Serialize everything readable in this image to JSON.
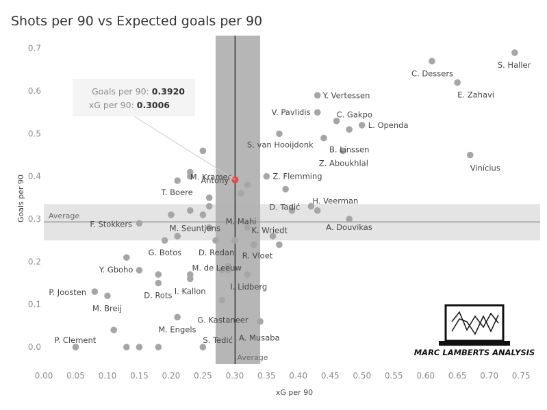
{
  "chart_data": {
    "type": "scatter",
    "title": "Shots per 90 vs Expected goals per 90",
    "xlabel": "xG per 90",
    "ylabel": "Goals per 90",
    "xlim": [
      0,
      0.78
    ],
    "ylim": [
      -0.04,
      0.73
    ],
    "xticks": [
      "0.00",
      "0.05",
      "0.10",
      "0.15",
      "0.20",
      "0.25",
      "0.30",
      "0.35",
      "0.40",
      "0.45",
      "0.50",
      "0.55",
      "0.60",
      "0.65",
      "0.70",
      "0.75"
    ],
    "yticks": [
      "0.0",
      "0.1",
      "0.2",
      "0.3",
      "0.4",
      "0.5",
      "0.6",
      "0.7"
    ],
    "averages": {
      "x_value": 0.3006,
      "y_value": 0.2933,
      "x_label": "Average",
      "y_label": "Average",
      "x_band": [
        0.27,
        0.34
      ],
      "y_band": [
        0.25,
        0.335
      ]
    },
    "points": [
      {
        "x": 0.74,
        "y": 0.69,
        "label": "S. Haller"
      },
      {
        "x": 0.61,
        "y": 0.67,
        "label": "C. Dessers"
      },
      {
        "x": 0.65,
        "y": 0.62,
        "label": "E. Zahavi"
      },
      {
        "x": 0.67,
        "y": 0.45,
        "label": "Vinícius"
      },
      {
        "x": 0.43,
        "y": 0.59,
        "label": "Y. Vertessen"
      },
      {
        "x": 0.43,
        "y": 0.55,
        "label": "V. Pavlidis"
      },
      {
        "x": 0.46,
        "y": 0.53,
        "label": "C. Gakpo"
      },
      {
        "x": 0.5,
        "y": 0.52,
        "label": "L. Openda"
      },
      {
        "x": 0.48,
        "y": 0.51,
        "label": ""
      },
      {
        "x": 0.37,
        "y": 0.5,
        "label": "S. van Hooijdonk"
      },
      {
        "x": 0.44,
        "y": 0.49,
        "label": "B. Linssen"
      },
      {
        "x": 0.47,
        "y": 0.46,
        "label": "Z. Aboukhlal"
      },
      {
        "x": 0.25,
        "y": 0.46,
        "label": ""
      },
      {
        "x": 0.23,
        "y": 0.41,
        "label": "M. Kramer"
      },
      {
        "x": 0.23,
        "y": 0.4,
        "label": ""
      },
      {
        "x": 0.35,
        "y": 0.4,
        "label": "Z. Flemming"
      },
      {
        "x": 0.21,
        "y": 0.39,
        "label": "T. Boere"
      },
      {
        "x": 0.32,
        "y": 0.38,
        "label": ""
      },
      {
        "x": 0.31,
        "y": 0.36,
        "label": ""
      },
      {
        "x": 0.38,
        "y": 0.37,
        "label": "D. Tadić"
      },
      {
        "x": 0.26,
        "y": 0.35,
        "label": ""
      },
      {
        "x": 0.26,
        "y": 0.33,
        "label": "M. Mahi"
      },
      {
        "x": 0.42,
        "y": 0.33,
        "label": "H. Veerman"
      },
      {
        "x": 0.43,
        "y": 0.32,
        "label": ""
      },
      {
        "x": 0.39,
        "y": 0.32,
        "label": ""
      },
      {
        "x": 0.23,
        "y": 0.32,
        "label": ""
      },
      {
        "x": 0.2,
        "y": 0.31,
        "label": ""
      },
      {
        "x": 0.25,
        "y": 0.31,
        "label": ""
      },
      {
        "x": 0.48,
        "y": 0.3,
        "label": "A. Douvikas"
      },
      {
        "x": 0.15,
        "y": 0.29,
        "label": "F. Stokkers"
      },
      {
        "x": 0.26,
        "y": 0.28,
        "label": "M. Seuntjens"
      },
      {
        "x": 0.32,
        "y": 0.28,
        "label": "K. Wriedt"
      },
      {
        "x": 0.21,
        "y": 0.26,
        "label": ""
      },
      {
        "x": 0.36,
        "y": 0.26,
        "label": ""
      },
      {
        "x": 0.19,
        "y": 0.25,
        "label": "G. Botos"
      },
      {
        "x": 0.27,
        "y": 0.25,
        "label": "D. Redan"
      },
      {
        "x": 0.3,
        "y": 0.25,
        "label": ""
      },
      {
        "x": 0.33,
        "y": 0.24,
        "label": "R. Vloet"
      },
      {
        "x": 0.37,
        "y": 0.24,
        "label": ""
      },
      {
        "x": 0.13,
        "y": 0.21,
        "label": "Y. Gboho"
      },
      {
        "x": 0.29,
        "y": 0.19,
        "label": "M. de Leeuw"
      },
      {
        "x": 0.15,
        "y": 0.18,
        "label": ""
      },
      {
        "x": 0.28,
        "y": 0.18,
        "label": ""
      },
      {
        "x": 0.29,
        "y": 0.18,
        "label": ""
      },
      {
        "x": 0.18,
        "y": 0.17,
        "label": ""
      },
      {
        "x": 0.23,
        "y": 0.17,
        "label": ""
      },
      {
        "x": 0.32,
        "y": 0.17,
        "label": "I. Lidberg"
      },
      {
        "x": 0.23,
        "y": 0.16,
        "label": "I. Kallon"
      },
      {
        "x": 0.18,
        "y": 0.15,
        "label": "D. Rots"
      },
      {
        "x": 0.08,
        "y": 0.13,
        "label": "P. Joosten"
      },
      {
        "x": 0.1,
        "y": 0.12,
        "label": "M. Breij"
      },
      {
        "x": 0.28,
        "y": 0.11,
        "label": "G. Kastaneer"
      },
      {
        "x": 0.21,
        "y": 0.07,
        "label": "M. Engels"
      },
      {
        "x": 0.34,
        "y": 0.06,
        "label": "A. Musaba"
      },
      {
        "x": 0.11,
        "y": 0.04,
        "label": ""
      },
      {
        "x": 0.05,
        "y": 0.0,
        "label": "P. Clement"
      },
      {
        "x": 0.13,
        "y": 0.0,
        "label": ""
      },
      {
        "x": 0.15,
        "y": 0.0,
        "label": ""
      },
      {
        "x": 0.18,
        "y": 0.0,
        "label": ""
      },
      {
        "x": 0.25,
        "y": 0.0,
        "label": "S. Tedić"
      }
    ],
    "highlight": {
      "x": 0.3006,
      "y": 0.392,
      "label": "Antony",
      "color": "#e8474b"
    },
    "tooltip": {
      "line1_label": "Goals per 90:",
      "line1_value": "0.3920",
      "line2_label": "xG per 90:",
      "line2_value": "0.3006"
    },
    "colors": {
      "point": "#a6a6a6",
      "band": "#bdbdbd",
      "v_band": "#b2b2b2",
      "avg_line": "#555555"
    }
  },
  "logo": {
    "text": "MARC LAMBERTS ANALYSIS"
  }
}
